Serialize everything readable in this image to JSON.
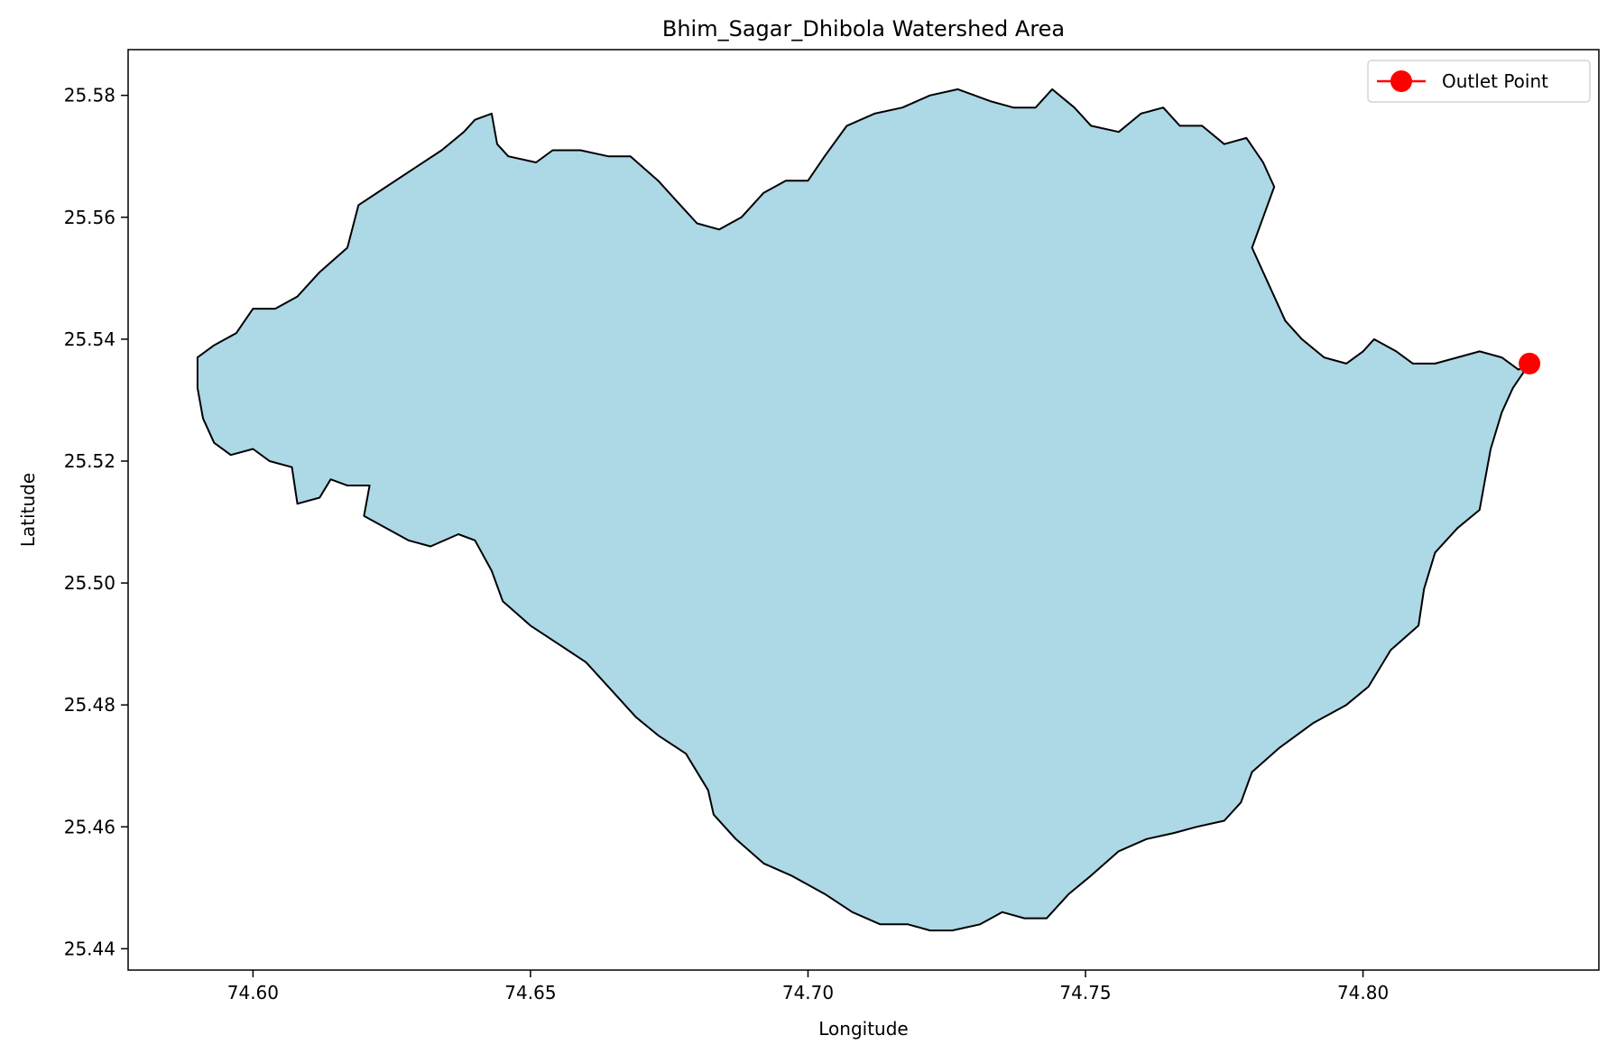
{
  "chart_data": {
    "type": "map",
    "title": "Bhim_Sagar_Dhibola Watershed Area",
    "xlabel": "Longitude",
    "ylabel": "Latitude",
    "xlim": [
      74.5775,
      74.8425
    ],
    "ylim": [
      25.4365,
      25.5875
    ],
    "xticks": [
      74.6,
      74.65,
      74.7,
      74.75,
      74.8
    ],
    "xtick_labels": [
      "74.60",
      "74.65",
      "74.70",
      "74.75",
      "74.80"
    ],
    "yticks": [
      25.44,
      25.46,
      25.48,
      25.5,
      25.52,
      25.54,
      25.56,
      25.58
    ],
    "ytick_labels": [
      "25.44",
      "25.46",
      "25.48",
      "25.50",
      "25.52",
      "25.54",
      "25.56",
      "25.58"
    ],
    "grid": false,
    "legend_position": "top-right",
    "watershed": {
      "fill_color": "#add8e6",
      "edge_color": "#000000",
      "boundary": [
        [
          74.59,
          25.537
        ],
        [
          74.593,
          25.539
        ],
        [
          74.597,
          25.541
        ],
        [
          74.6,
          25.545
        ],
        [
          74.604,
          25.545
        ],
        [
          74.608,
          25.547
        ],
        [
          74.612,
          25.551
        ],
        [
          74.617,
          25.555
        ],
        [
          74.619,
          25.562
        ],
        [
          74.624,
          25.565
        ],
        [
          74.629,
          25.568
        ],
        [
          74.634,
          25.571
        ],
        [
          74.638,
          25.574
        ],
        [
          74.64,
          25.576
        ],
        [
          74.643,
          25.577
        ],
        [
          74.644,
          25.572
        ],
        [
          74.646,
          25.57
        ],
        [
          74.651,
          25.569
        ],
        [
          74.654,
          25.571
        ],
        [
          74.659,
          25.571
        ],
        [
          74.664,
          25.57
        ],
        [
          74.668,
          25.57
        ],
        [
          74.673,
          25.566
        ],
        [
          74.677,
          25.562
        ],
        [
          74.68,
          25.559
        ],
        [
          74.684,
          25.558
        ],
        [
          74.688,
          25.56
        ],
        [
          74.692,
          25.564
        ],
        [
          74.696,
          25.566
        ],
        [
          74.7,
          25.566
        ],
        [
          74.703,
          25.57
        ],
        [
          74.707,
          25.575
        ],
        [
          74.712,
          25.577
        ],
        [
          74.717,
          25.578
        ],
        [
          74.722,
          25.58
        ],
        [
          74.727,
          25.581
        ],
        [
          74.733,
          25.579
        ],
        [
          74.737,
          25.578
        ],
        [
          74.741,
          25.578
        ],
        [
          74.744,
          25.581
        ],
        [
          74.748,
          25.578
        ],
        [
          74.751,
          25.575
        ],
        [
          74.756,
          25.574
        ],
        [
          74.76,
          25.577
        ],
        [
          74.764,
          25.578
        ],
        [
          74.767,
          25.575
        ],
        [
          74.771,
          25.575
        ],
        [
          74.775,
          25.572
        ],
        [
          74.779,
          25.573
        ],
        [
          74.782,
          25.569
        ],
        [
          74.784,
          25.565
        ],
        [
          74.782,
          25.56
        ],
        [
          74.78,
          25.555
        ],
        [
          74.782,
          25.551
        ],
        [
          74.784,
          25.547
        ],
        [
          74.786,
          25.543
        ],
        [
          74.789,
          25.54
        ],
        [
          74.793,
          25.537
        ],
        [
          74.797,
          25.536
        ],
        [
          74.8,
          25.538
        ],
        [
          74.802,
          25.54
        ],
        [
          74.806,
          25.538
        ],
        [
          74.809,
          25.536
        ],
        [
          74.813,
          25.536
        ],
        [
          74.817,
          25.537
        ],
        [
          74.821,
          25.538
        ],
        [
          74.825,
          25.537
        ],
        [
          74.828,
          25.535
        ],
        [
          74.83,
          25.536
        ],
        [
          74.827,
          25.532
        ],
        [
          74.825,
          25.528
        ],
        [
          74.823,
          25.522
        ],
        [
          74.822,
          25.517
        ],
        [
          74.821,
          25.512
        ],
        [
          74.817,
          25.509
        ],
        [
          74.813,
          25.505
        ],
        [
          74.811,
          25.499
        ],
        [
          74.81,
          25.493
        ],
        [
          74.805,
          25.489
        ],
        [
          74.801,
          25.483
        ],
        [
          74.797,
          25.48
        ],
        [
          74.791,
          25.477
        ],
        [
          74.785,
          25.473
        ],
        [
          74.78,
          25.469
        ],
        [
          74.778,
          25.464
        ],
        [
          74.775,
          25.461
        ],
        [
          74.77,
          25.46
        ],
        [
          74.766,
          25.459
        ],
        [
          74.761,
          25.458
        ],
        [
          74.756,
          25.456
        ],
        [
          74.751,
          25.452
        ],
        [
          74.747,
          25.449
        ],
        [
          74.743,
          25.445
        ],
        [
          74.739,
          25.445
        ],
        [
          74.735,
          25.446
        ],
        [
          74.731,
          25.444
        ],
        [
          74.726,
          25.443
        ],
        [
          74.722,
          25.443
        ],
        [
          74.718,
          25.444
        ],
        [
          74.713,
          25.444
        ],
        [
          74.708,
          25.446
        ],
        [
          74.703,
          25.449
        ],
        [
          74.697,
          25.452
        ],
        [
          74.692,
          25.454
        ],
        [
          74.687,
          25.458
        ],
        [
          74.683,
          25.462
        ],
        [
          74.682,
          25.466
        ],
        [
          74.678,
          25.472
        ],
        [
          74.673,
          25.475
        ],
        [
          74.669,
          25.478
        ],
        [
          74.664,
          25.483
        ],
        [
          74.66,
          25.487
        ],
        [
          74.655,
          25.49
        ],
        [
          74.65,
          25.493
        ],
        [
          74.645,
          25.497
        ],
        [
          74.643,
          25.502
        ],
        [
          74.64,
          25.507
        ],
        [
          74.637,
          25.508
        ],
        [
          74.632,
          25.506
        ],
        [
          74.628,
          25.507
        ],
        [
          74.624,
          25.509
        ],
        [
          74.62,
          25.511
        ],
        [
          74.621,
          25.516
        ],
        [
          74.617,
          25.516
        ],
        [
          74.614,
          25.517
        ],
        [
          74.612,
          25.514
        ],
        [
          74.608,
          25.513
        ],
        [
          74.607,
          25.519
        ],
        [
          74.603,
          25.52
        ],
        [
          74.6,
          25.522
        ],
        [
          74.596,
          25.521
        ],
        [
          74.593,
          25.523
        ],
        [
          74.591,
          25.527
        ],
        [
          74.59,
          25.532
        ]
      ]
    },
    "series": [
      {
        "name": "Outlet Point",
        "color": "#ff0000",
        "marker": "circle",
        "points": [
          {
            "lon": 74.83,
            "lat": 25.536
          }
        ]
      }
    ]
  }
}
